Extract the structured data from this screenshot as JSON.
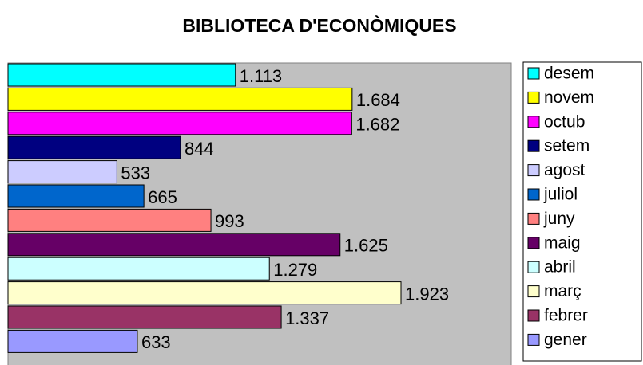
{
  "chart_data": {
    "type": "barh",
    "title": "BIBLIOTECA D'ECONÒMIQUES",
    "categories": [
      "desem",
      "novem",
      "octub",
      "setem",
      "agost",
      "juliol",
      "juny",
      "maig",
      "abril",
      "març",
      "febrer",
      "gener"
    ],
    "values": [
      1113,
      1684,
      1682,
      844,
      533,
      665,
      993,
      1625,
      1279,
      1923,
      1337,
      633
    ],
    "value_labels": [
      "1.113",
      "1.684",
      "1.682",
      "844",
      "533",
      "665",
      "993",
      "1.625",
      "1.279",
      "1.923",
      "1.337",
      "633"
    ],
    "colors": [
      "#00ffff",
      "#ffff00",
      "#ff00ff",
      "#000080",
      "#ccccff",
      "#0066cc",
      "#ff8080",
      "#660066",
      "#ccffff",
      "#ffffcc",
      "#993366",
      "#9999ff"
    ],
    "legend": "right"
  }
}
